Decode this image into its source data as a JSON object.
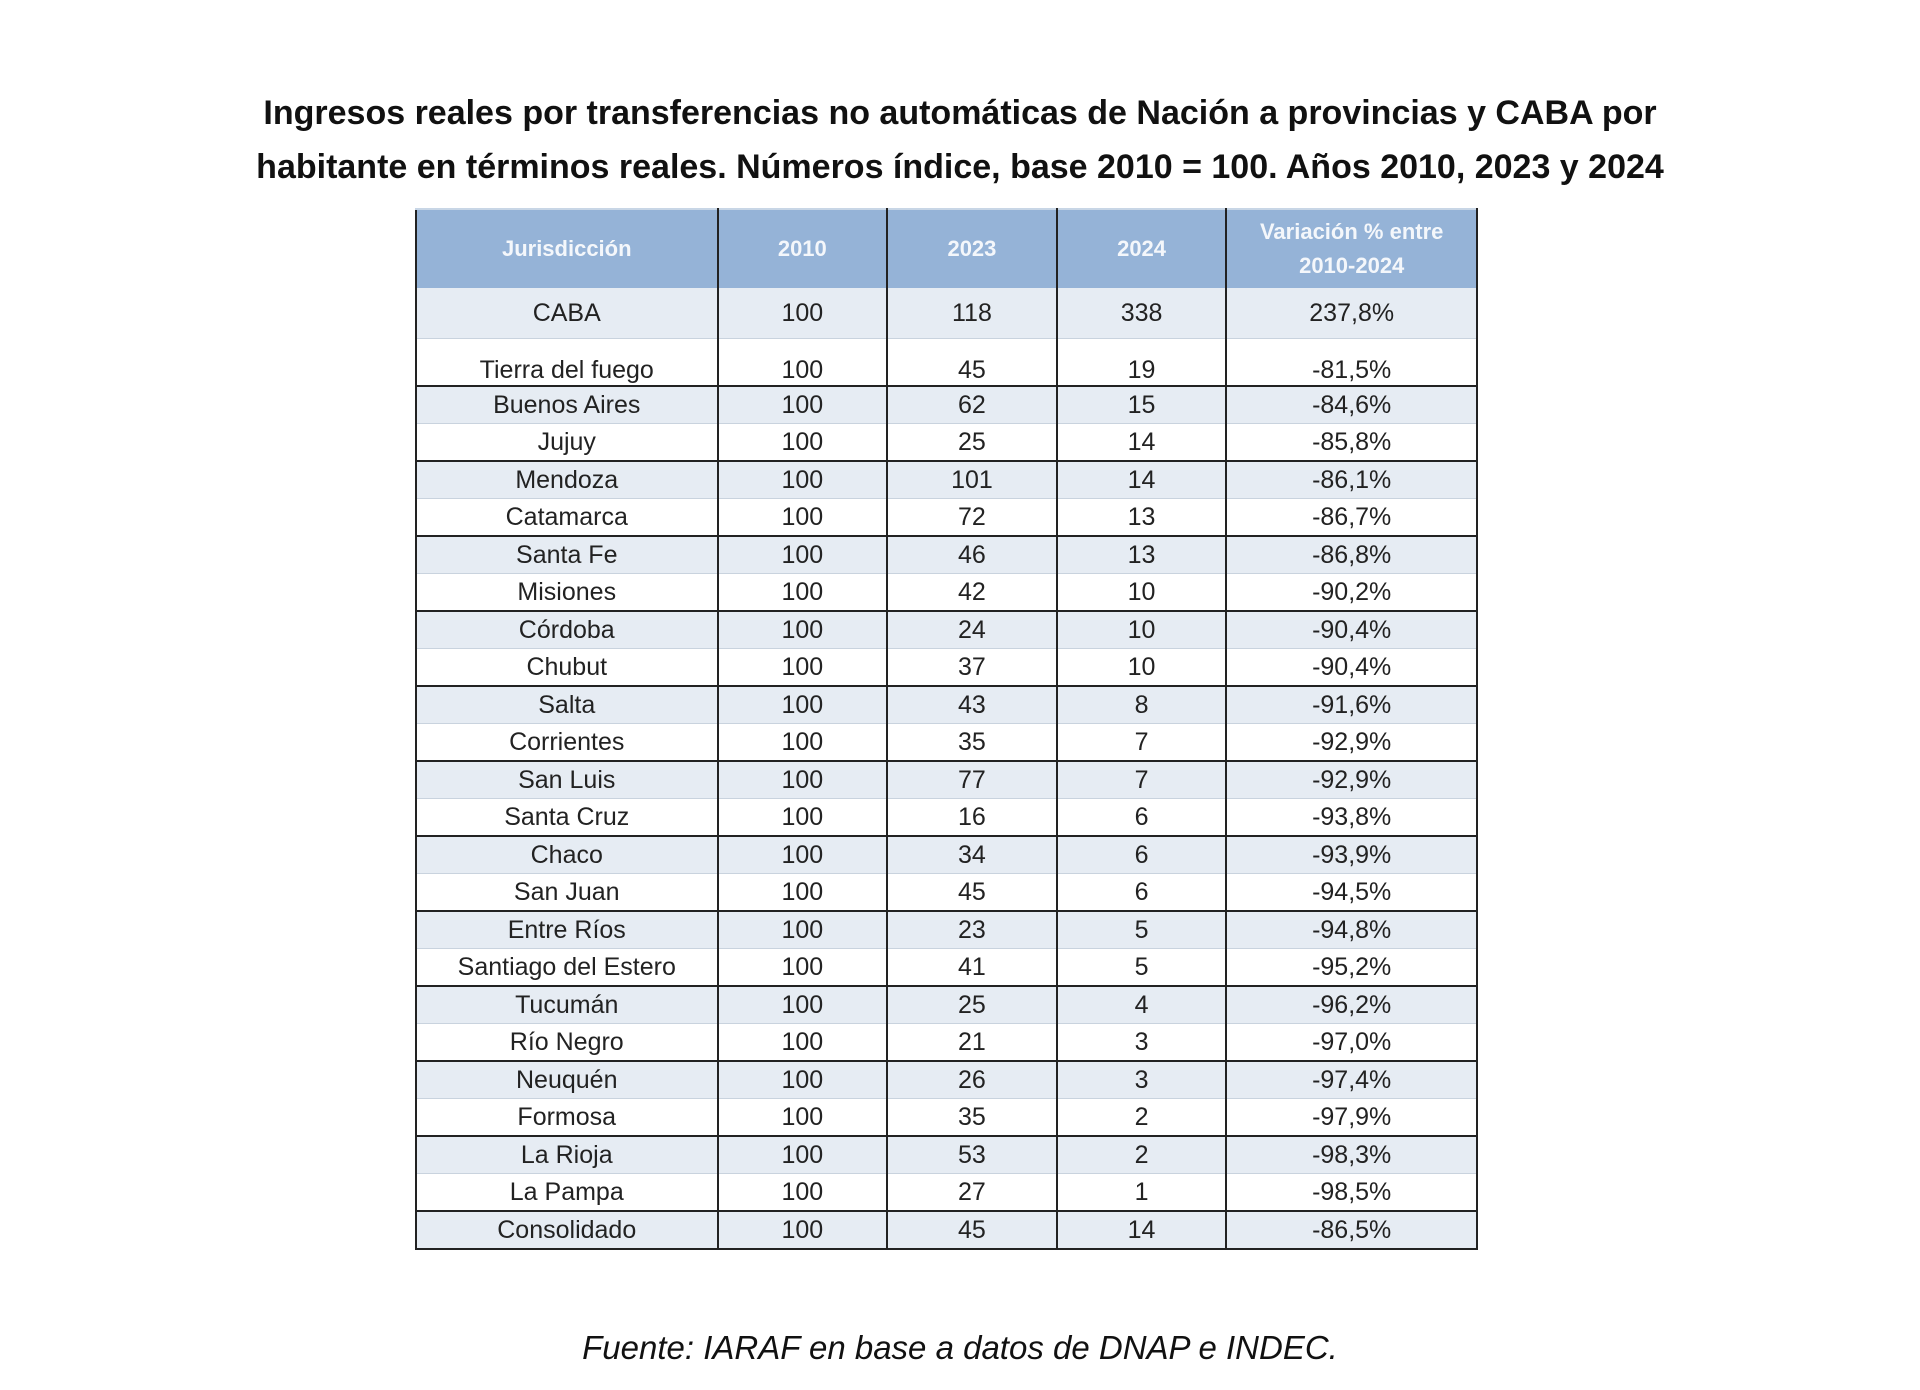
{
  "title": {
    "line1": "Ingresos reales por transferencias no automáticas de Nación a provincias y CABA por",
    "line2": "habitante en términos reales. Números índice, base 2010 = 100. Años 2010, 2023  y 2024"
  },
  "table": {
    "headers": [
      "Jurisdicción",
      "2010",
      "2023",
      "2024",
      "Variación % entre 2010-2024"
    ],
    "header_colors": {
      "header_bg": "#95b3d7",
      "stripe_bg": "#e6ecf3"
    },
    "rows": [
      [
        "CABA",
        "100",
        "118",
        "338",
        "237,8%"
      ],
      [
        "Tierra del fuego",
        "100",
        "45",
        "19",
        "-81,5%"
      ],
      [
        "Buenos Aires",
        "100",
        "62",
        "15",
        "-84,6%"
      ],
      [
        "Jujuy",
        "100",
        "25",
        "14",
        "-85,8%"
      ],
      [
        "Mendoza",
        "100",
        "101",
        "14",
        "-86,1%"
      ],
      [
        "Catamarca",
        "100",
        "72",
        "13",
        "-86,7%"
      ],
      [
        "Santa Fe",
        "100",
        "46",
        "13",
        "-86,8%"
      ],
      [
        "Misiones",
        "100",
        "42",
        "10",
        "-90,2%"
      ],
      [
        "Córdoba",
        "100",
        "24",
        "10",
        "-90,4%"
      ],
      [
        "Chubut",
        "100",
        "37",
        "10",
        "-90,4%"
      ],
      [
        "Salta",
        "100",
        "43",
        "8",
        "-91,6%"
      ],
      [
        "Corrientes",
        "100",
        "35",
        "7",
        "-92,9%"
      ],
      [
        "San Luis",
        "100",
        "77",
        "7",
        "-92,9%"
      ],
      [
        "Santa Cruz",
        "100",
        "16",
        "6",
        "-93,8%"
      ],
      [
        "Chaco",
        "100",
        "34",
        "6",
        "-93,9%"
      ],
      [
        "San Juan",
        "100",
        "45",
        "6",
        "-94,5%"
      ],
      [
        "Entre Ríos",
        "100",
        "23",
        "5",
        "-94,8%"
      ],
      [
        "Santiago del Estero",
        "100",
        "41",
        "5",
        "-95,2%"
      ],
      [
        "Tucumán",
        "100",
        "25",
        "4",
        "-96,2%"
      ],
      [
        "Río Negro",
        "100",
        "21",
        "3",
        "-97,0%"
      ],
      [
        "Neuquén",
        "100",
        "26",
        "3",
        "-97,4%"
      ],
      [
        "Formosa",
        "100",
        "35",
        "2",
        "-97,9%"
      ],
      [
        "La Rioja",
        "100",
        "53",
        "2",
        "-98,3%"
      ],
      [
        "La Pampa",
        "100",
        "27",
        "1",
        "-98,5%"
      ],
      [
        "Consolidado",
        "100",
        "45",
        "14",
        "-86,5%"
      ]
    ]
  },
  "source": "Fuente:  IARAF en base a datos de  DNAP e  INDEC."
}
